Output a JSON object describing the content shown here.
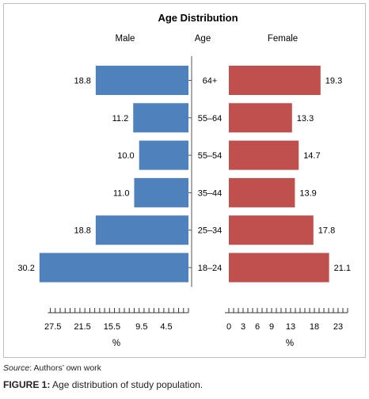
{
  "chart_data": {
    "type": "bar",
    "title": "Age Distribution",
    "left_header": "Male",
    "center_header": "Age",
    "right_header": "Female",
    "categories": [
      "64+",
      "55–64",
      "55–54",
      "35–44",
      "25–34",
      "18–24"
    ],
    "series": [
      {
        "name": "Male",
        "values": [
          18.8,
          11.2,
          10.0,
          11.0,
          18.8,
          30.2
        ],
        "labels": [
          "18.8",
          "11.2",
          "10.0",
          "11.0",
          "18.8",
          "30.2"
        ],
        "color": "#4f81bd"
      },
      {
        "name": "Female",
        "values": [
          19.3,
          13.3,
          14.7,
          13.9,
          17.8,
          21.1
        ],
        "labels": [
          "19.3",
          "13.3",
          "14.7",
          "13.9",
          "17.8",
          "21.1"
        ],
        "color": "#c0504d"
      }
    ],
    "left_axis": {
      "xlabel": "%",
      "tick_labels": [
        "27.5",
        "21.5",
        "15.5",
        "9.5",
        "4.5"
      ],
      "tick_values": [
        27.5,
        21.5,
        15.5,
        9.5,
        4.5
      ],
      "xlim": [
        32,
        0
      ]
    },
    "right_axis": {
      "xlabel": "%",
      "tick_labels": [
        "0",
        "3",
        "6",
        "9",
        "13",
        "18",
        "23"
      ],
      "tick_values": [
        0,
        3,
        6,
        9,
        13,
        18,
        23
      ],
      "xlim": [
        0,
        25
      ]
    },
    "grid": false,
    "legend": "none"
  },
  "source_note": {
    "label": "Source",
    "text": ": Authors’ own work"
  },
  "caption": {
    "label": "FIGURE 1:",
    "text": " Age distribution of study population."
  }
}
